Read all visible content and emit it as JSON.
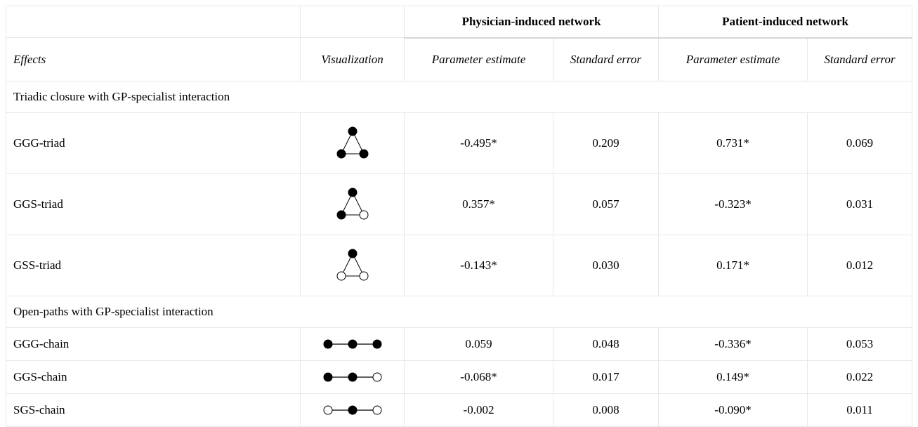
{
  "header": {
    "group1": "Physician-induced network",
    "group2": "Patient-induced network",
    "col_effects": "Effects",
    "col_visualization": "Visualization",
    "col_param1": "Parameter estimate",
    "col_se1": "Standard error",
    "col_param2": "Parameter estimate",
    "col_se2": "Standard error"
  },
  "sections": [
    {
      "title": "Triadic closure with GP-specialist interaction",
      "rows": [
        {
          "effect": "GGG-triad",
          "viz": "triad-filled-filled-filled",
          "p1": "-0.495*",
          "se1": "0.209",
          "p2": "0.731*",
          "se2": "0.069"
        },
        {
          "effect": "GGS-triad",
          "viz": "triad-filled-filled-open",
          "p1": "0.357*",
          "se1": "0.057",
          "p2": "-0.323*",
          "se2": "0.031"
        },
        {
          "effect": "GSS-triad",
          "viz": "triad-filled-open-open",
          "p1": "-0.143*",
          "se1": "0.030",
          "p2": "0.171*",
          "se2": "0.012"
        }
      ]
    },
    {
      "title": "Open-paths with GP-specialist interaction",
      "rows": [
        {
          "effect": "GGG-chain",
          "viz": "chain-filled-filled-filled",
          "p1": "0.059",
          "se1": "0.048",
          "p2": "-0.336*",
          "se2": "0.053"
        },
        {
          "effect": "GGS-chain",
          "viz": "chain-filled-filled-open",
          "p1": "-0.068*",
          "se1": "0.017",
          "p2": "0.149*",
          "se2": "0.022"
        },
        {
          "effect": "SGS-chain",
          "viz": "chain-open-filled-open",
          "p1": "-0.002",
          "se1": "0.008",
          "p2": "-0.090*",
          "se2": "0.011"
        }
      ]
    }
  ]
}
